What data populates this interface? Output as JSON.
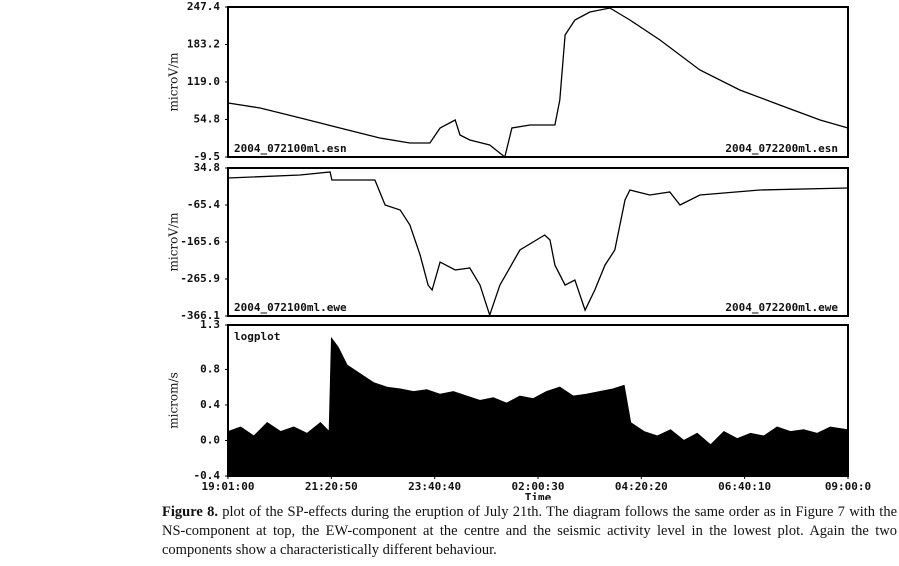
{
  "chart_data": [
    {
      "type": "line",
      "ylabel": "microV/m",
      "color": "#000000",
      "xlim": [
        19.0167,
        33.0
      ],
      "ylim": [
        -9.5,
        247.4
      ],
      "yticks": [
        {
          "value": 247.4,
          "label": "247.4"
        },
        {
          "value": 183.2,
          "label": "183.2"
        },
        {
          "value": 119.0,
          "label": "119.0"
        },
        {
          "value": 54.8,
          "label": "54.8"
        },
        {
          "value": -9.5,
          "label": "-9.5"
        }
      ],
      "annotations": [
        {
          "text": "2004_072100ml.esn",
          "position": "bottom-left"
        },
        {
          "text": "2004_072200ml.esn",
          "position": "bottom-right"
        }
      ],
      "x": [
        19.02,
        19.74,
        20.64,
        21.54,
        22.44,
        23.12,
        23.57,
        23.8,
        24.14,
        24.25,
        24.47,
        24.92,
        25.26,
        25.42,
        25.83,
        26.39,
        26.5,
        26.62,
        26.84,
        27.18,
        27.63,
        28.08,
        28.76,
        29.66,
        30.56,
        31.46,
        32.37,
        33.0
      ],
      "values": [
        83.0,
        74.5,
        57.4,
        40.2,
        23.1,
        14.5,
        14.5,
        40.2,
        53.9,
        28.2,
        19.7,
        11.1,
        -9.5,
        40.2,
        45.3,
        45.3,
        88.2,
        199.5,
        225.1,
        238.8,
        245.7,
        225.1,
        190.9,
        139.5,
        105.3,
        79.6,
        53.9,
        40.2
      ]
    },
    {
      "type": "line",
      "ylabel": "microV/m",
      "color": "#000000",
      "xlim": [
        19.0167,
        33.0
      ],
      "ylim": [
        -366.1,
        34.8
      ],
      "yticks": [
        34.8,
        -65.4,
        -165.6,
        -265.9,
        -366.1
      ],
      "annotations": [
        {
          "text": "2004_072100ml.ewe",
          "position": "bottom-left"
        },
        {
          "text": "2004_072200ml.ewe",
          "position": "bottom-right"
        }
      ],
      "x": [
        19.02,
        20.64,
        21.32,
        21.36,
        21.99,
        22.33,
        22.56,
        22.9,
        23.12,
        23.35,
        23.53,
        23.62,
        23.8,
        24.14,
        24.47,
        24.7,
        24.92,
        25.15,
        25.6,
        26.16,
        26.28,
        26.39,
        26.62,
        26.84,
        27.07,
        27.29,
        27.52,
        27.74,
        27.97,
        28.08,
        28.53,
        28.98,
        29.21,
        29.66,
        31.01,
        33.0
      ],
      "values": [
        7.7,
        15.8,
        24.0,
        2.3,
        2.3,
        2.3,
        -65.5,
        -79.0,
        -119.7,
        -200.9,
        -282.3,
        -295.8,
        -220.0,
        -241.6,
        -236.2,
        -282.3,
        -363.6,
        -282.3,
        -187.4,
        -146.8,
        -160.3,
        -228.1,
        -282.3,
        -268.7,
        -350.0,
        -295.8,
        -228.1,
        -187.4,
        -51.9,
        -24.8,
        -38.4,
        -30.2,
        -65.5,
        -38.4,
        -24.8,
        -19.4
      ]
    },
    {
      "type": "area",
      "ylabel": "microm/s",
      "xlabel": "Time",
      "color": "#000000",
      "xlim": [
        19.0167,
        33.0
      ],
      "ylim": [
        -0.4,
        1.3
      ],
      "yticks": [
        1.3,
        0.8,
        0.4,
        {
          "value": 0,
          "label": "0.0"
        },
        -0.4
      ],
      "xticks": [
        {
          "value": 19.0167,
          "label": "19:01:00"
        },
        {
          "value": 21.3472,
          "label": "21:20:50"
        },
        {
          "value": 23.6778,
          "label": "23:40:40"
        },
        {
          "value": 26.0083,
          "label": "02:00:30"
        },
        {
          "value": 28.3389,
          "label": "04:20:20"
        },
        {
          "value": 30.6694,
          "label": "06:40:10"
        },
        {
          "value": 33.0,
          "label": "09:00:0"
        }
      ],
      "annotations": [
        {
          "text": "logplot",
          "position": "top-left"
        }
      ],
      "x": [
        19.02,
        19.3,
        19.6,
        19.9,
        20.2,
        20.5,
        20.8,
        21.1,
        21.3,
        21.35,
        21.5,
        21.7,
        22.0,
        22.3,
        22.6,
        22.9,
        23.2,
        23.5,
        23.8,
        24.1,
        24.4,
        24.7,
        25.0,
        25.3,
        25.6,
        25.9,
        26.2,
        26.5,
        26.8,
        27.1,
        27.4,
        27.7,
        27.95,
        28.1,
        28.4,
        28.7,
        29.0,
        29.3,
        29.6,
        29.9,
        30.2,
        30.5,
        30.8,
        31.1,
        31.4,
        31.7,
        32.0,
        32.3,
        32.6,
        33.0
      ],
      "values": [
        0.1,
        0.15,
        0.05,
        0.2,
        0.1,
        0.15,
        0.08,
        0.2,
        0.1,
        1.15,
        1.05,
        0.85,
        0.75,
        0.65,
        0.6,
        0.58,
        0.55,
        0.57,
        0.52,
        0.55,
        0.5,
        0.45,
        0.48,
        0.42,
        0.5,
        0.47,
        0.55,
        0.6,
        0.5,
        0.52,
        0.55,
        0.58,
        0.62,
        0.2,
        0.1,
        0.05,
        0.12,
        0.0,
        0.08,
        -0.05,
        0.1,
        0.02,
        0.08,
        0.05,
        0.15,
        0.1,
        0.12,
        0.08,
        0.15,
        0.12
      ]
    }
  ],
  "caption": {
    "label": "Figure 8.",
    "text": "plot of the SP-effects during the eruption of July 21th. The diagram follows the same order as in Figure 7 with the NS-component at top, the EW-component at the centre and the seismic activity level in the lowest plot. Again the two components show a characteristically different behaviour."
  }
}
